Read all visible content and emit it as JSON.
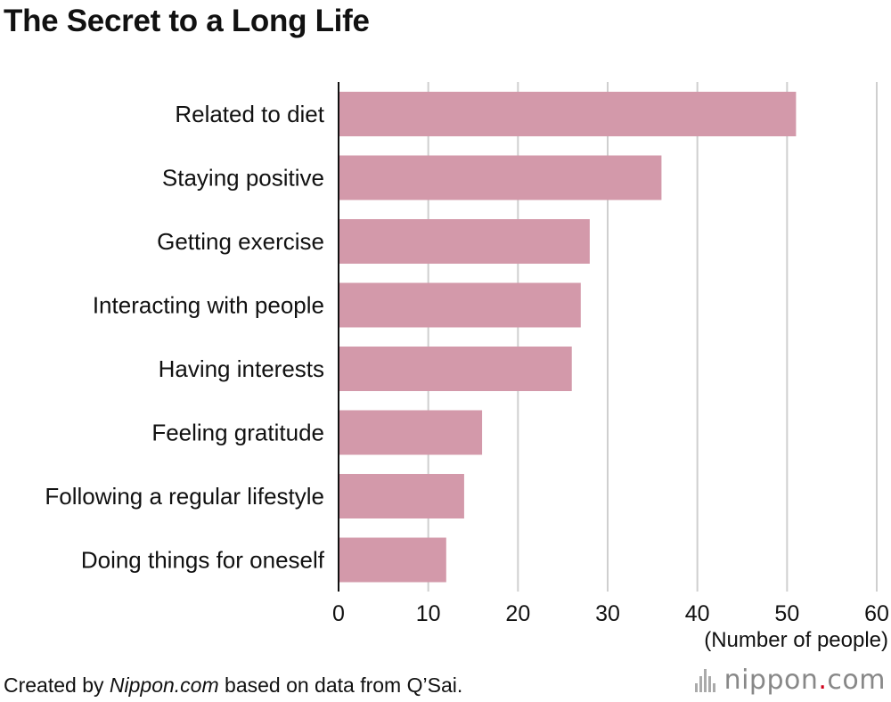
{
  "title": "The Secret to a Long Life",
  "chart_data": {
    "type": "bar",
    "orientation": "horizontal",
    "categories": [
      "Related to diet",
      "Staying positive",
      "Getting exercise",
      "Interacting with people",
      "Having interests",
      "Feeling gratitude",
      "Following a regular lifestyle",
      "Doing things for oneself"
    ],
    "values": [
      51,
      36,
      28,
      27,
      26,
      16,
      14,
      12
    ],
    "xlim": [
      0,
      60
    ],
    "xticks": [
      0,
      10,
      20,
      30,
      40,
      50,
      60
    ],
    "xlabel": "(Number of people)",
    "bar_color": "#d399aa",
    "grid": true
  },
  "credit": {
    "prefix": "Created by ",
    "source": "Nippon.com",
    "suffix": " based on data from Q’Sai."
  },
  "logo": {
    "name": "nippon",
    "dot": ".",
    "tld": "com"
  },
  "colors": {
    "logo_accent": "#d0021b"
  }
}
